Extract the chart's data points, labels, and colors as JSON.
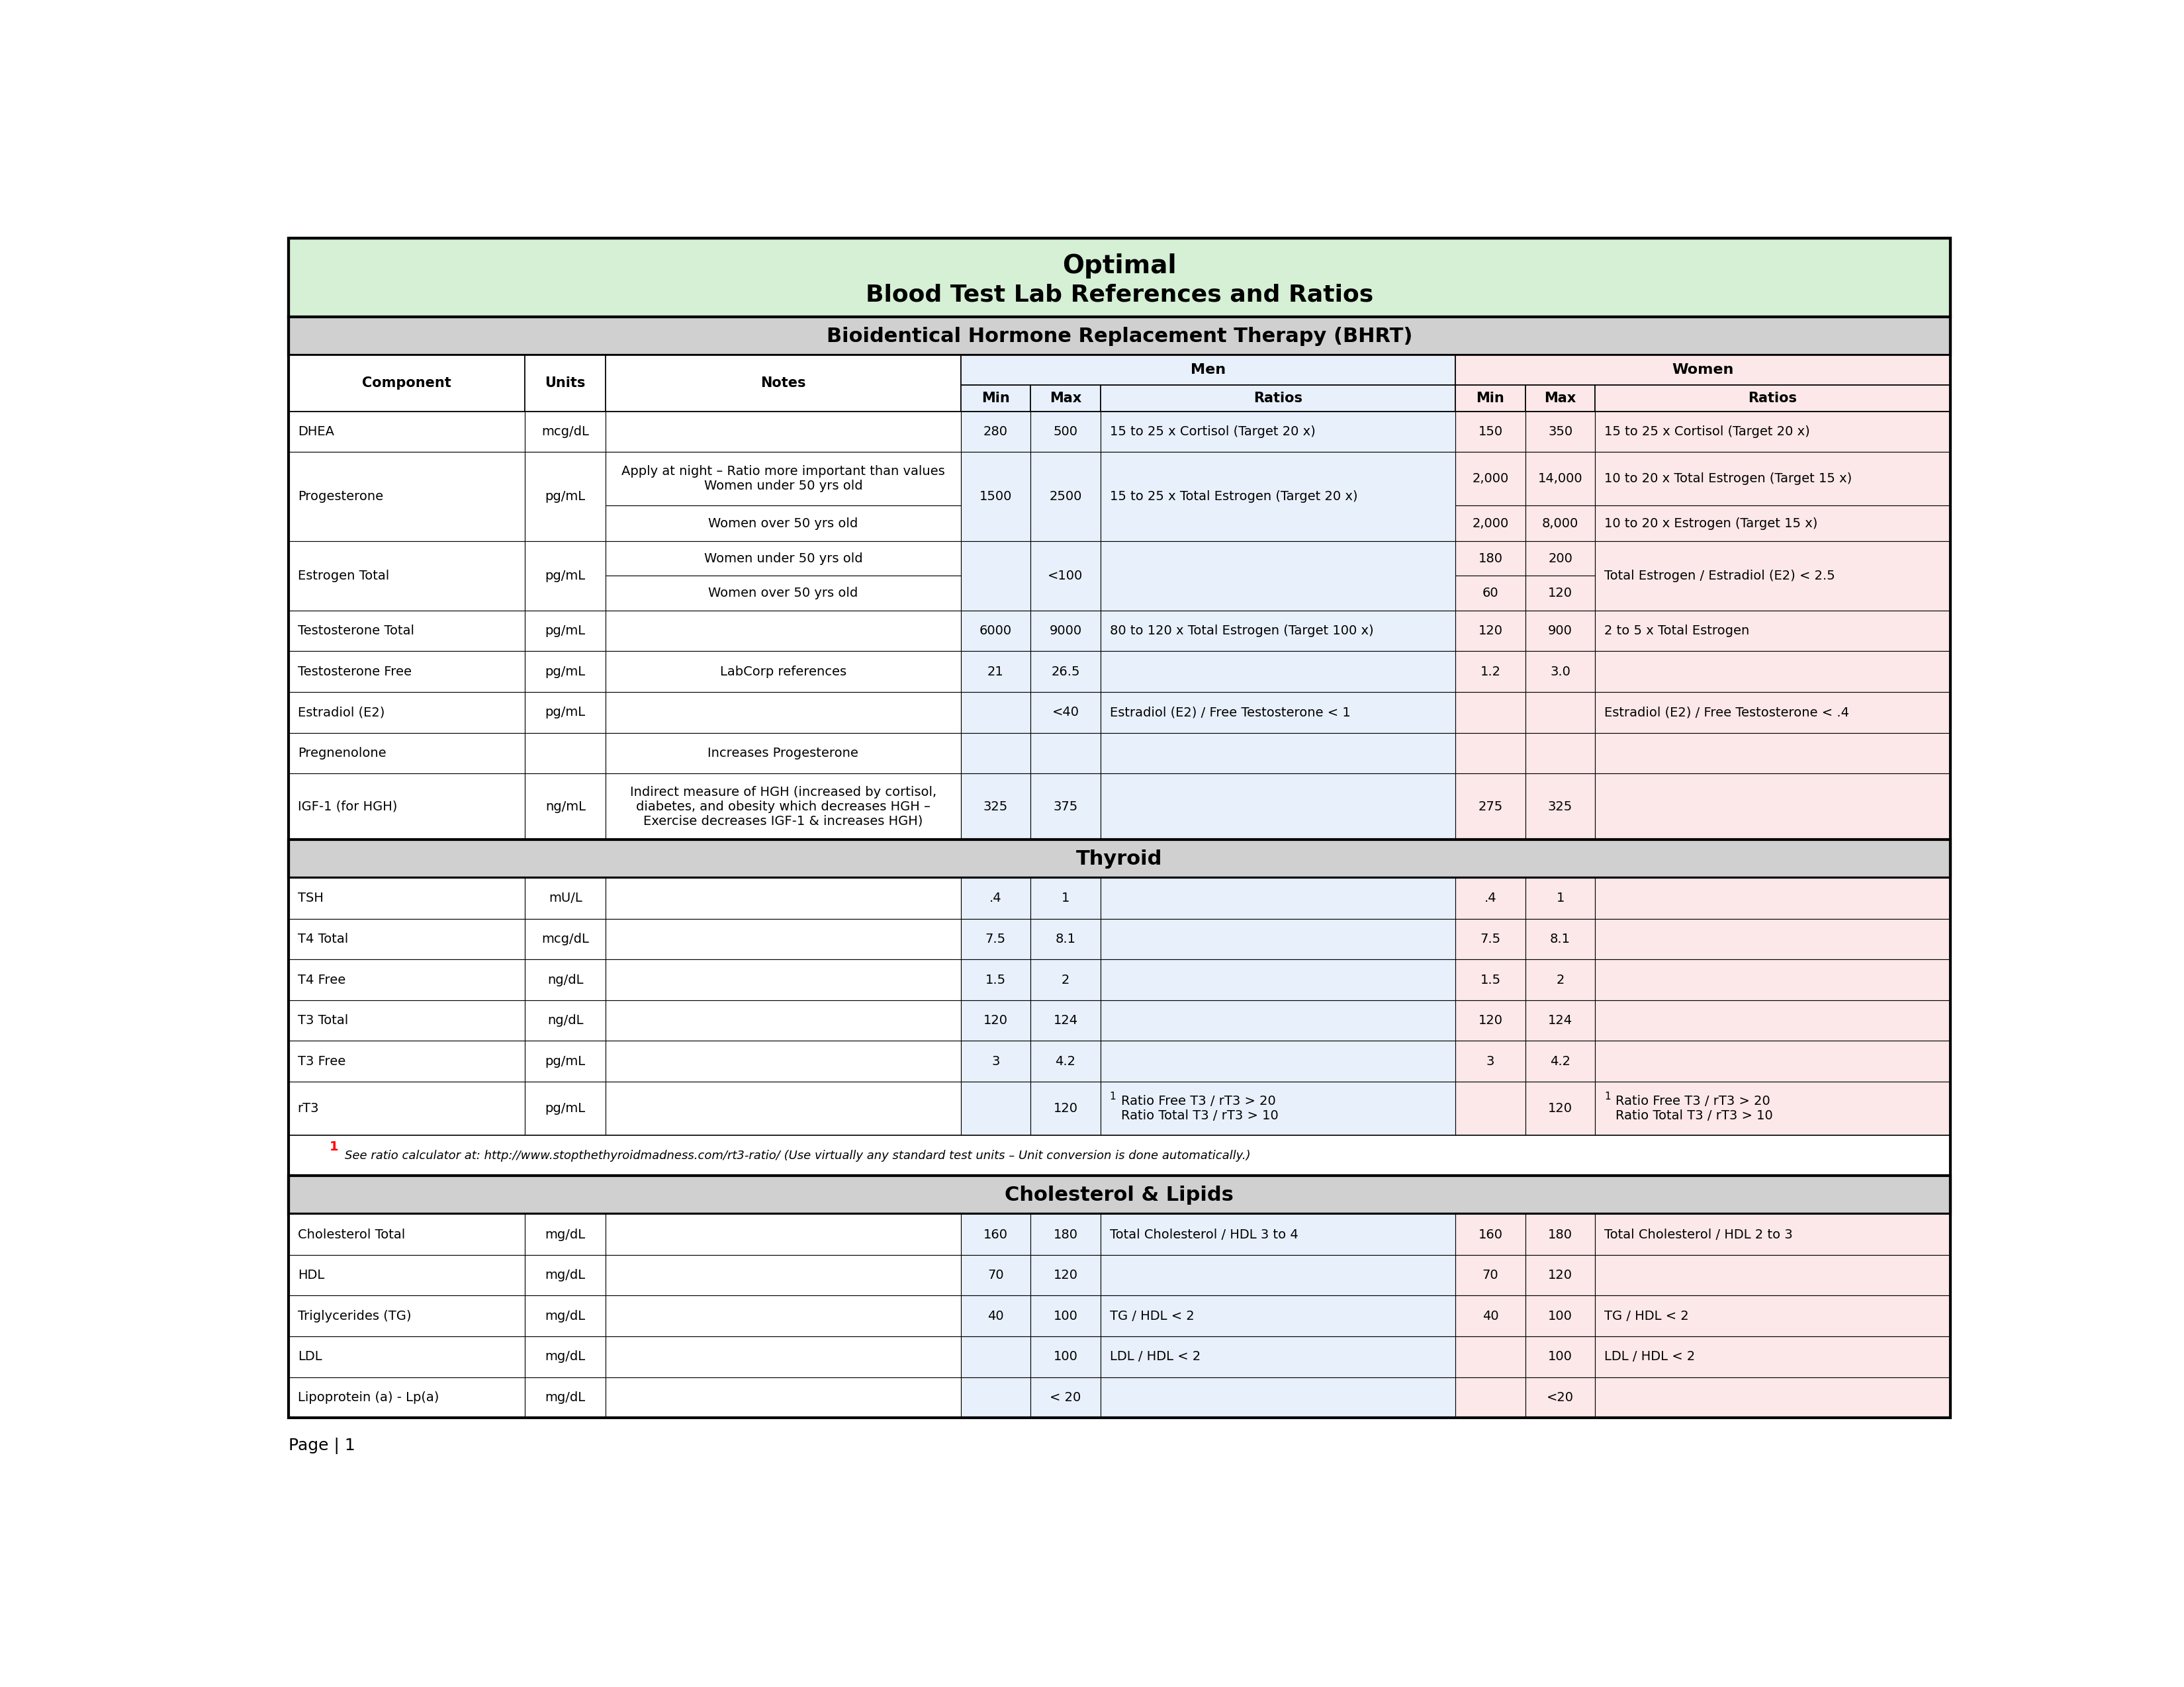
{
  "title_line1": "Optimal",
  "title_line2": "Blood Test Lab References and Ratios",
  "title_bg": "#d5f0d5",
  "section_bg": "#d0d0d0",
  "men_bg": "#e8f0fb",
  "women_bg": "#fce8e8",
  "white_bg": "#ffffff",
  "footnote_bg": "#f0f0f0",
  "sections": [
    {
      "name": "Bioidentical Hormone Replacement Therapy (BHRT)",
      "rows": [
        {
          "component": "DHEA",
          "units": "mcg/dL",
          "notes": "",
          "men_min": "280",
          "men_max": "500",
          "men_ratios": "15 to 25 x Cortisol (Target 20 x)",
          "women_min": "150",
          "women_max": "350",
          "women_ratios": "15 to 25 x Cortisol (Target 20 x)",
          "subrows": []
        },
        {
          "component": "Progesterone",
          "units": "pg/mL",
          "notes": "Apply at night – Ratio more important than values\nWomen under 50 yrs old",
          "men_min": "1500",
          "men_max": "2500",
          "men_ratios": "15 to 25 x Total Estrogen (Target 20 x)",
          "women_min": "2,000",
          "women_max": "14,000",
          "women_ratios": "10 to 20 x Total Estrogen (Target 15 x)",
          "subrows": [
            {
              "notes": "Women over 50 yrs old",
              "women_min": "2,000",
              "women_max": "8,000",
              "women_ratios": "10 to 20 x Estrogen (Target 15 x)"
            }
          ]
        },
        {
          "component": "Estrogen Total",
          "units": "pg/mL",
          "notes": "Women under 50 yrs old",
          "men_min": "",
          "men_max": "<100",
          "men_ratios": "",
          "women_min": "180",
          "women_max": "200",
          "women_ratios": "Total Estrogen / Estradiol (E2) < 2.5",
          "subrows": [
            {
              "notes": "Women over 50 yrs old",
              "women_min": "60",
              "women_max": "120",
              "women_ratios": ""
            }
          ]
        },
        {
          "component": "Testosterone Total",
          "units": "pg/mL",
          "notes": "",
          "men_min": "6000",
          "men_max": "9000",
          "men_ratios": "80 to 120 x Total Estrogen (Target 100 x)",
          "women_min": "120",
          "women_max": "900",
          "women_ratios": "2 to 5 x Total Estrogen",
          "subrows": []
        },
        {
          "component": "Testosterone Free",
          "units": "pg/mL",
          "notes": "LabCorp references",
          "men_min": "21",
          "men_max": "26.5",
          "men_ratios": "",
          "women_min": "1.2",
          "women_max": "3.0",
          "women_ratios": "",
          "subrows": []
        },
        {
          "component": "Estradiol (E2)",
          "units": "pg/mL",
          "notes": "",
          "men_min": "",
          "men_max": "<40",
          "men_ratios": "Estradiol (E2) / Free Testosterone < 1",
          "women_min": "",
          "women_max": "",
          "women_ratios": "Estradiol (E2) / Free Testosterone < .4",
          "subrows": []
        },
        {
          "component": "Pregnenolone",
          "units": "",
          "notes": "Increases Progesterone",
          "men_min": "",
          "men_max": "",
          "men_ratios": "",
          "women_min": "",
          "women_max": "",
          "women_ratios": "",
          "subrows": []
        },
        {
          "component": "IGF-1 (for HGH)",
          "units": "ng/mL",
          "notes": "Indirect measure of HGH (increased by cortisol,\ndiabetes, and obesity which decreases HGH –\nExercise decreases IGF-1 & increases HGH)",
          "men_min": "325",
          "men_max": "375",
          "men_ratios": "",
          "women_min": "275",
          "women_max": "325",
          "women_ratios": "",
          "subrows": []
        }
      ]
    },
    {
      "name": "Thyroid",
      "rows": [
        {
          "component": "TSH",
          "units": "mU/L",
          "notes": "",
          "men_min": ".4",
          "men_max": "1",
          "men_ratios": "",
          "women_min": ".4",
          "women_max": "1",
          "women_ratios": "",
          "subrows": []
        },
        {
          "component": "T4 Total",
          "units": "mcg/dL",
          "notes": "",
          "men_min": "7.5",
          "men_max": "8.1",
          "men_ratios": "",
          "women_min": "7.5",
          "women_max": "8.1",
          "women_ratios": "",
          "subrows": []
        },
        {
          "component": "T4 Free",
          "units": "ng/dL",
          "notes": "",
          "men_min": "1.5",
          "men_max": "2",
          "men_ratios": "",
          "women_min": "1.5",
          "women_max": "2",
          "women_ratios": "",
          "subrows": []
        },
        {
          "component": "T3 Total",
          "units": "ng/dL",
          "notes": "",
          "men_min": "120",
          "men_max": "124",
          "men_ratios": "",
          "women_min": "120",
          "women_max": "124",
          "women_ratios": "",
          "subrows": []
        },
        {
          "component": "T3 Free",
          "units": "pg/mL",
          "notes": "",
          "men_min": "3",
          "men_max": "4.2",
          "men_ratios": "",
          "women_min": "3",
          "women_max": "4.2",
          "women_ratios": "",
          "subrows": []
        },
        {
          "component": "rT3",
          "units": "pg/mL",
          "notes": "",
          "men_min": "",
          "men_max": "120",
          "men_ratios": "¹Ratio Free T3 / rT3 > 20\nRatio Total T3 / rT3 > 10",
          "women_min": "",
          "women_max": "120",
          "women_ratios": "¹Ratio Free T3 / rT3 > 20\nRatio Total T3 / rT3 > 10",
          "subrows": []
        }
      ]
    },
    {
      "name": "Cholesterol & Lipids",
      "rows": [
        {
          "component": "Cholesterol Total",
          "units": "mg/dL",
          "notes": "",
          "men_min": "160",
          "men_max": "180",
          "men_ratios": "Total Cholesterol / HDL 3 to 4",
          "women_min": "160",
          "women_max": "180",
          "women_ratios": "Total Cholesterol / HDL 2 to 3",
          "subrows": []
        },
        {
          "component": "HDL",
          "units": "mg/dL",
          "notes": "",
          "men_min": "70",
          "men_max": "120",
          "men_ratios": "",
          "women_min": "70",
          "women_max": "120",
          "women_ratios": "",
          "subrows": []
        },
        {
          "component": "Triglycerides (TG)",
          "units": "mg/dL",
          "notes": "",
          "men_min": "40",
          "men_max": "100",
          "men_ratios": "TG / HDL < 2",
          "women_min": "40",
          "women_max": "100",
          "women_ratios": "TG / HDL < 2",
          "subrows": []
        },
        {
          "component": "LDL",
          "units": "mg/dL",
          "notes": "",
          "men_min": "",
          "men_max": "100",
          "men_ratios": "LDL / HDL < 2",
          "women_min": "",
          "women_max": "100",
          "women_ratios": "LDL / HDL < 2",
          "subrows": []
        },
        {
          "component": "Lipoprotein (a) - Lp(a)",
          "units": "mg/dL",
          "notes": "",
          "men_min": "",
          "men_max": "< 20",
          "men_ratios": "",
          "women_min": "",
          "women_max": "<20",
          "women_ratios": "",
          "subrows": []
        }
      ]
    }
  ],
  "thyroid_footnote": "¹ See ratio calculator at: http://www.stopthethyroidmadness.com/rt3-ratio/ (Use virtually any standard test units – Unit conversion is done automatically.)",
  "page_label": "Page | 1"
}
